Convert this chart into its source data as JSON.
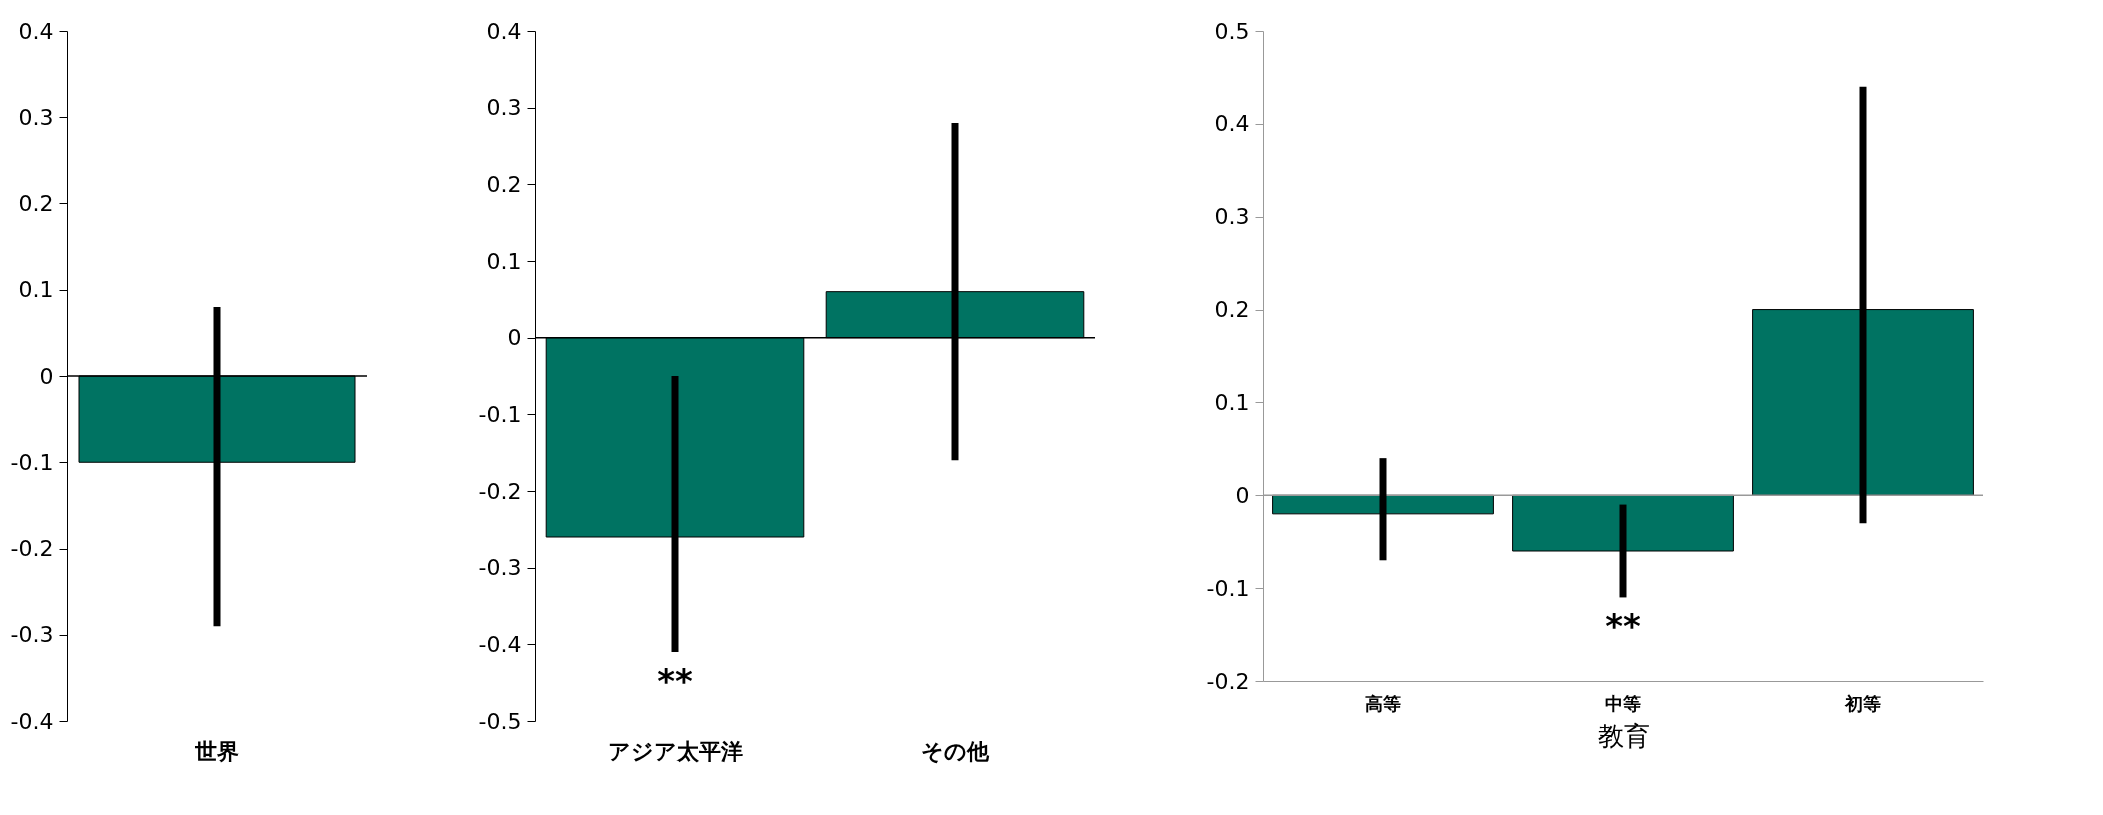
{
  "chart_data": [
    {
      "type": "bar",
      "categories": [
        "世界"
      ],
      "series": [
        {
          "color": "#007362",
          "values": [
            -0.1
          ],
          "errors": [
            [
              -0.29,
              0.08
            ]
          ]
        }
      ],
      "ylim": [
        -0.4,
        0.4
      ],
      "yticks": [
        -0.4,
        -0.3,
        -0.2,
        -0.1,
        0,
        0.1,
        0.2,
        0.3,
        0.4
      ]
    },
    {
      "type": "bar",
      "categories": [
        "アジア太平洋",
        "その他"
      ],
      "series": [
        {
          "color": "#007362",
          "values": [
            -0.26,
            0.06
          ],
          "errors": [
            [
              -0.41,
              -0.05
            ],
            [
              -0.16,
              0.28
            ]
          ]
        }
      ],
      "ylim": [
        -0.5,
        0.4
      ],
      "yticks": [
        -0.5,
        -0.4,
        -0.3,
        -0.2,
        -0.1,
        0,
        0.1,
        0.2,
        0.3,
        0.4
      ],
      "annotations": [
        "**"
      ]
    },
    {
      "type": "bar",
      "categories": [
        "高等",
        "中等",
        "初等"
      ],
      "xlabel": "教育",
      "series": [
        {
          "color": "#007362",
          "values": [
            -0.02,
            -0.06,
            0.2
          ],
          "errors": [
            [
              -0.07,
              0.04
            ],
            [
              -0.11,
              -0.01
            ],
            [
              -0.03,
              0.44
            ]
          ]
        }
      ],
      "ylim": [
        -0.2,
        0.5
      ],
      "yticks": [
        -0.2,
        -0.1,
        0,
        0.1,
        0.2,
        0.3,
        0.4,
        0.5
      ],
      "annotations": [
        "**"
      ]
    }
  ]
}
